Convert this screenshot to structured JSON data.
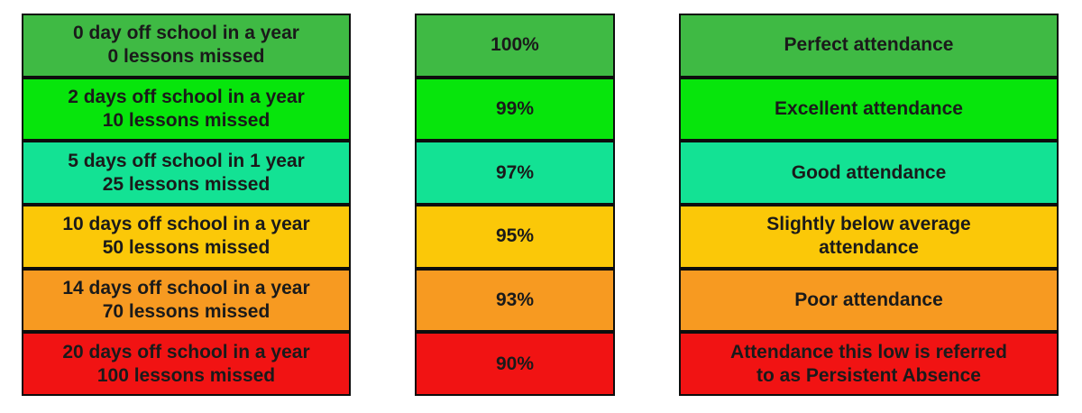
{
  "table": {
    "rows": [
      {
        "color": "#3fba44",
        "days_lines": [
          "0 day off school in a year",
          "0 lessons missed"
        ],
        "percent": "100%",
        "description_lines": [
          "Perfect attendance"
        ]
      },
      {
        "color": "#07e50c",
        "days_lines": [
          "2 days off school in a year",
          "10 lessons missed"
        ],
        "percent": "99%",
        "description_lines": [
          "Excellent attendance"
        ]
      },
      {
        "color": "#13e294",
        "days_lines": [
          "5 days off school in 1 year",
          "25 lessons missed"
        ],
        "percent": "97%",
        "description_lines": [
          "Good attendance"
        ]
      },
      {
        "color": "#fbc808",
        "days_lines": [
          "10 days off school in a year",
          "50 lessons missed"
        ],
        "percent": "95%",
        "description_lines": [
          "Slightly below average",
          "attendance"
        ]
      },
      {
        "color": "#f79a21",
        "days_lines": [
          "14 days off school in a year",
          "70 lessons missed"
        ],
        "percent": "93%",
        "description_lines": [
          "Poor attendance"
        ]
      },
      {
        "color": "#f11313",
        "days_lines": [
          "20 days off school in a year",
          "100 lessons missed"
        ],
        "percent": "90%",
        "description_lines": [
          "Attendance this low is referred",
          "to as Persistent Absence"
        ]
      }
    ]
  },
  "chart_data": {
    "type": "table",
    "rows": [
      {
        "days": "0 day off school in a year / 0 lessons missed",
        "percent": "100%",
        "rating": "Perfect attendance",
        "color": "#3fba44"
      },
      {
        "days": "2 days off school in a year / 10 lessons missed",
        "percent": "99%",
        "rating": "Excellent attendance",
        "color": "#07e50c"
      },
      {
        "days": "5 days off school in 1 year / 25 lessons missed",
        "percent": "97%",
        "rating": "Good attendance",
        "color": "#13e294"
      },
      {
        "days": "10 days off school in a year / 50 lessons missed",
        "percent": "95%",
        "rating": "Slightly below average attendance",
        "color": "#fbc808"
      },
      {
        "days": "14 days off school in a year / 70 lessons missed",
        "percent": "93%",
        "rating": "Poor attendance",
        "color": "#f79a21"
      },
      {
        "days": "20 days off school in a year / 100 lessons missed",
        "percent": "90%",
        "rating": "Attendance this low is referred to as Persistent Absence",
        "color": "#f11313"
      }
    ]
  }
}
